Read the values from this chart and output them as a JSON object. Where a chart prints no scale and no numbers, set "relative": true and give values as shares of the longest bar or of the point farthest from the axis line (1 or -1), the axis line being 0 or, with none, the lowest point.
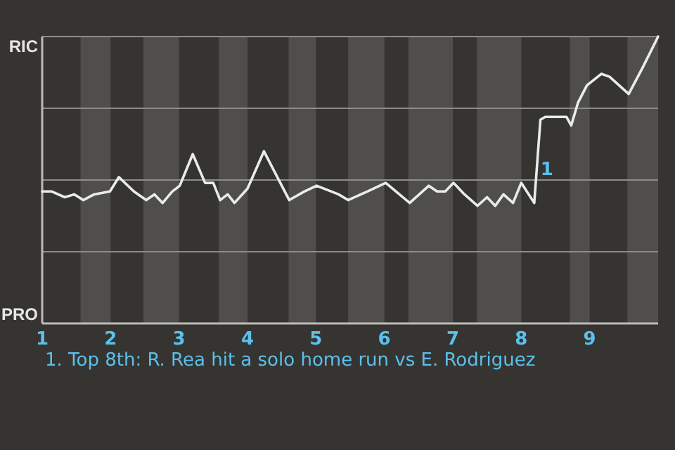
{
  "chart_data": {
    "type": "line",
    "relative": true,
    "x": [
      1.0,
      1.14,
      1.33,
      1.47,
      1.6,
      1.76,
      1.99,
      2.12,
      2.34,
      2.52,
      2.64,
      2.76,
      2.9,
      3.01,
      3.2,
      3.38,
      3.5,
      3.6,
      3.71,
      3.81,
      4.0,
      4.24,
      4.61,
      4.83,
      5.01,
      5.33,
      5.47,
      5.75,
      6.02,
      6.37,
      6.65,
      6.77,
      6.89,
      7.01,
      7.17,
      7.36,
      7.5,
      7.62,
      7.74,
      7.88,
      8.0,
      8.19,
      8.28,
      8.35,
      8.66,
      8.73,
      8.83,
      8.96,
      9.17,
      9.29,
      9.57,
      9.77,
      10.0
    ],
    "series": [
      {
        "color": "#e8ecef",
        "values": [
          0.46,
          0.46,
          0.44,
          0.45,
          0.43,
          0.45,
          0.46,
          0.51,
          0.46,
          0.43,
          0.45,
          0.42,
          0.46,
          0.48,
          0.59,
          0.49,
          0.49,
          0.43,
          0.45,
          0.42,
          0.47,
          0.6,
          0.43,
          0.46,
          0.48,
          0.45,
          0.43,
          0.46,
          0.49,
          0.42,
          0.48,
          0.46,
          0.46,
          0.49,
          0.45,
          0.41,
          0.44,
          0.41,
          0.45,
          0.42,
          0.49,
          0.42,
          0.71,
          0.72,
          0.72,
          0.69,
          0.77,
          0.83,
          0.87,
          0.86,
          0.8,
          0.89,
          1.0
        ]
      }
    ],
    "xlim": [
      1,
      10
    ],
    "xticks": [
      1,
      2,
      3,
      4,
      5,
      6,
      7,
      8,
      9
    ],
    "ref_lines": [
      {
        "axis": "y",
        "value": 0.25,
        "color": "#8e8c8a"
      },
      {
        "axis": "y",
        "value": 0.5,
        "color": "#8e8c8a"
      },
      {
        "axis": "y",
        "value": 0.75,
        "color": "#8e8c8a"
      }
    ],
    "marker": "none",
    "line_style": "solid",
    "bands": [
      {
        "axis": "x",
        "from": 1.56,
        "to": 2,
        "color": "#504e4b"
      },
      {
        "axis": "x",
        "from": 2.48,
        "to": 3,
        "color": "#504e4b"
      },
      {
        "axis": "x",
        "from": 3.58,
        "to": 4,
        "color": "#504e4b"
      },
      {
        "axis": "x",
        "from": 4.6,
        "to": 5,
        "color": "#504e4b"
      },
      {
        "axis": "x",
        "from": 5.47,
        "to": 6,
        "color": "#504e4b"
      },
      {
        "axis": "x",
        "from": 6.35,
        "to": 7,
        "color": "#504e4b"
      },
      {
        "axis": "x",
        "from": 7.35,
        "to": 8,
        "color": "#504e4b"
      },
      {
        "axis": "x",
        "from": 8.71,
        "to": 9,
        "color": "#504e4b"
      },
      {
        "axis": "x",
        "from": 9.55,
        "to": 10,
        "color": "#504e4b"
      }
    ],
    "annotations": [
      "RIC",
      "PRO",
      {
        "text": "1",
        "x": 8.19,
        "y": 0.42
      },
      "1. Top 8th: R. Rea hit a solo home run vs E. Rodriguez"
    ]
  }
}
